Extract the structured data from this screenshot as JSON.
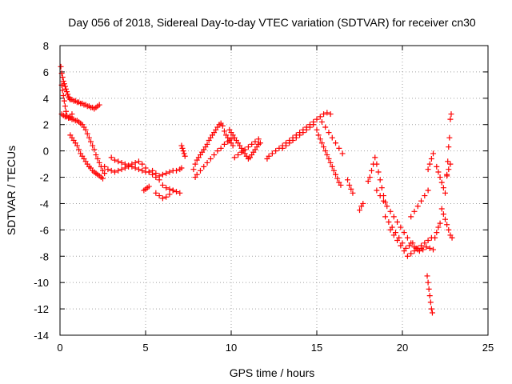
{
  "chart_data": {
    "type": "scatter",
    "title": "Day 056 of 2018, Sidereal Day-to-day VTEC variation (SDTVAR) for receiver cn30",
    "xlabel": "GPS time / hours",
    "ylabel": "SDTVAR / TECUs",
    "xlim": [
      0,
      25
    ],
    "ylim": [
      -14,
      8
    ],
    "xticks": [
      0,
      5,
      10,
      15,
      20,
      25
    ],
    "yticks": [
      -14,
      -12,
      -10,
      -8,
      -6,
      -4,
      -2,
      0,
      2,
      4,
      6,
      8
    ],
    "grid": true,
    "marker": "+",
    "marker_color": "#ff0000",
    "series": [
      {
        "name": "SDTVAR",
        "x": [
          0.05,
          0.1,
          0.15,
          0.2,
          0.25,
          0.3,
          0.35,
          0.4,
          0.45,
          0.5,
          0.55,
          0.6,
          0.7,
          0.8,
          0.9,
          1.0,
          1.1,
          1.2,
          1.3,
          1.4,
          1.5,
          1.6,
          1.7,
          1.8,
          1.9,
          2.0,
          2.1,
          2.2,
          2.3,
          0.1,
          0.2,
          0.3,
          0.4,
          0.5,
          0.6,
          0.7,
          0.8,
          0.9,
          1.0,
          1.1,
          1.2,
          1.3,
          1.4,
          1.5,
          1.6,
          1.7,
          1.8,
          1.9,
          2.0,
          2.1,
          2.2,
          2.3,
          2.4,
          2.5,
          2.6,
          0.6,
          0.7,
          0.8,
          0.9,
          1.0,
          1.1,
          1.2,
          1.3,
          1.4,
          1.5,
          1.6,
          1.7,
          1.8,
          1.9,
          2.0,
          2.1,
          2.2,
          2.3,
          2.4,
          2.5,
          0.1,
          0.15,
          0.2,
          0.25,
          0.3,
          0.35,
          0.4,
          0.5,
          0.6,
          0.7,
          2.6,
          2.8,
          3.0,
          3.2,
          3.4,
          3.6,
          3.8,
          4.0,
          4.2,
          4.4,
          4.6,
          4.8,
          5.0,
          5.2,
          5.4,
          5.6,
          5.8,
          6.0,
          6.2,
          6.4,
          6.6,
          6.8,
          7.0,
          7.1,
          3.0,
          3.2,
          3.4,
          3.6,
          3.8,
          4.0,
          4.2,
          4.4,
          4.6,
          4.8,
          5.0,
          5.2,
          5.4,
          5.6,
          5.8,
          6.0,
          6.2,
          6.4,
          6.6,
          6.8,
          7.0,
          4.9,
          5.0,
          5.1,
          5.2,
          5.6,
          5.8,
          6.0,
          6.2,
          6.4,
          6.6,
          7.1,
          7.15,
          7.2,
          7.25,
          7.3,
          7.8,
          7.9,
          8.0,
          8.1,
          8.2,
          8.3,
          8.4,
          8.5,
          8.6,
          8.7,
          8.8,
          8.9,
          9.0,
          9.1,
          9.2,
          9.3,
          9.4,
          9.5,
          9.6,
          9.7,
          9.8,
          9.9,
          10.0,
          10.1,
          7.9,
          8.0,
          8.2,
          8.4,
          8.6,
          8.8,
          9.0,
          9.2,
          9.4,
          9.6,
          9.8,
          10.0,
          9.9,
          10.0,
          10.1,
          10.2,
          10.3,
          10.4,
          10.5,
          10.6,
          10.7,
          10.8,
          10.9,
          11.0,
          11.1,
          11.2,
          11.3,
          11.4,
          11.5,
          11.6,
          11.7,
          10.2,
          10.4,
          10.6,
          10.8,
          11.0,
          11.2,
          11.4,
          11.6,
          12.1,
          12.2,
          12.4,
          12.6,
          12.8,
          13.0,
          13.2,
          13.4,
          13.6,
          13.8,
          14.0,
          14.2,
          14.4,
          14.6,
          14.8,
          15.0,
          15.2,
          15.4,
          15.6,
          15.8,
          13.0,
          13.2,
          13.4,
          13.6,
          13.8,
          14.0,
          14.2,
          14.4,
          14.6,
          14.8,
          15.0,
          15.1,
          15.2,
          15.3,
          15.4,
          15.5,
          15.6,
          15.7,
          15.8,
          15.9,
          16.0,
          16.1,
          16.2,
          16.3,
          16.4,
          15.3,
          15.5,
          15.7,
          15.9,
          16.1,
          16.3,
          16.5,
          16.8,
          16.9,
          17.0,
          17.1,
          17.5,
          17.6,
          17.7,
          18.0,
          18.1,
          18.2,
          18.3,
          18.4,
          18.5,
          18.6,
          18.7,
          18.8,
          18.9,
          19.0,
          18.5,
          18.7,
          18.9,
          19.1,
          19.3,
          19.5,
          19.7,
          19.9,
          20.1,
          20.3,
          20.5,
          20.7,
          20.9,
          21.1,
          19.0,
          19.2,
          19.4,
          19.6,
          19.8,
          20.0,
          20.2,
          20.4,
          20.6,
          20.8,
          21.0,
          21.2,
          21.4,
          21.6,
          21.8,
          19.3,
          19.5,
          19.7,
          19.9,
          20.1,
          20.3,
          20.5,
          20.7,
          20.9,
          21.1,
          21.3,
          21.5,
          21.7,
          20.5,
          20.7,
          20.9,
          21.1,
          21.3,
          21.5,
          21.45,
          21.5,
          21.55,
          21.6,
          21.65,
          21.7,
          21.75,
          21.5,
          21.6,
          21.7,
          21.8,
          21.9,
          22.0,
          22.1,
          22.2,
          22.0,
          22.1,
          22.2,
          22.3,
          22.4,
          22.5,
          22.6,
          22.7,
          22.8,
          22.3,
          22.4,
          22.5,
          22.6,
          22.7,
          22.8,
          22.9,
          22.6,
          22.65,
          22.7,
          22.75,
          22.8,
          22.85
        ],
        "y": [
          6.4,
          5.9,
          5.6,
          5.3,
          5.1,
          4.9,
          4.7,
          4.5,
          4.3,
          4.1,
          4.0,
          3.9,
          3.9,
          3.8,
          3.8,
          3.7,
          3.7,
          3.6,
          3.6,
          3.5,
          3.5,
          3.4,
          3.4,
          3.3,
          3.3,
          3.2,
          3.3,
          3.4,
          3.5,
          2.8,
          2.7,
          2.6,
          2.6,
          2.5,
          2.5,
          2.4,
          2.4,
          2.3,
          2.3,
          2.2,
          2.1,
          2.0,
          1.8,
          1.6,
          1.3,
          1.0,
          0.7,
          0.4,
          0.1,
          -0.3,
          -0.6,
          -0.9,
          -1.2,
          -1.5,
          -1.7,
          1.2,
          1.0,
          0.8,
          0.6,
          0.4,
          0.1,
          -0.2,
          -0.4,
          -0.6,
          -0.8,
          -1.0,
          -1.2,
          -1.3,
          -1.5,
          -1.6,
          -1.7,
          -1.8,
          -1.9,
          -2.0,
          -2.1,
          5.0,
          4.6,
          4.2,
          3.8,
          3.4,
          3.0,
          2.7,
          2.5,
          2.6,
          2.8,
          -1.2,
          -1.4,
          -1.5,
          -1.6,
          -1.5,
          -1.4,
          -1.3,
          -1.2,
          -1.0,
          -0.9,
          -0.8,
          -1.0,
          -1.3,
          -1.6,
          -1.8,
          -2.0,
          -1.9,
          -1.8,
          -1.7,
          -1.6,
          -1.5,
          -1.5,
          -1.4,
          -1.3,
          -0.5,
          -0.7,
          -0.8,
          -0.9,
          -1.0,
          -1.1,
          -1.2,
          -1.3,
          -1.4,
          -1.5,
          -1.6,
          -1.6,
          -1.5,
          -1.7,
          -2.2,
          -2.6,
          -2.8,
          -2.9,
          -3.0,
          -3.1,
          -3.2,
          -3.0,
          -2.9,
          -2.8,
          -2.7,
          -3.2,
          -3.4,
          -3.6,
          -3.5,
          -3.3,
          -3.0,
          0.4,
          0.2,
          0.0,
          -0.2,
          -0.4,
          -1.4,
          -1.0,
          -0.7,
          -0.5,
          -0.3,
          -0.1,
          0.1,
          0.3,
          0.5,
          0.8,
          1.0,
          1.2,
          1.4,
          1.6,
          1.8,
          2.0,
          2.1,
          1.9,
          1.5,
          1.2,
          1.0,
          0.8,
          0.6,
          0.4,
          -2.0,
          -1.8,
          -1.5,
          -1.2,
          -0.9,
          -0.6,
          -0.3,
          0.0,
          0.2,
          0.5,
          0.7,
          0.9,
          1.6,
          1.4,
          1.2,
          1.0,
          0.8,
          0.6,
          0.4,
          0.2,
          0.0,
          -0.2,
          -0.4,
          -0.6,
          -0.5,
          -0.3,
          -0.1,
          0.1,
          0.3,
          0.5,
          0.6,
          -0.5,
          -0.3,
          -0.1,
          0.1,
          0.3,
          0.5,
          0.7,
          0.9,
          -0.6,
          -0.4,
          -0.2,
          0.0,
          0.2,
          0.4,
          0.6,
          0.8,
          1.0,
          1.2,
          1.4,
          1.6,
          1.8,
          2.0,
          2.2,
          2.4,
          2.6,
          2.8,
          2.9,
          2.8,
          0.2,
          0.4,
          0.6,
          0.8,
          1.0,
          1.2,
          1.4,
          1.6,
          1.8,
          2.0,
          1.6,
          1.2,
          0.9,
          0.6,
          0.3,
          0.0,
          -0.3,
          -0.6,
          -0.9,
          -1.2,
          -1.5,
          -1.8,
          -2.1,
          -2.4,
          -2.6,
          2.2,
          1.8,
          1.4,
          1.0,
          0.6,
          0.2,
          -0.2,
          -2.2,
          -2.6,
          -2.9,
          -3.2,
          -4.5,
          -4.2,
          -4.0,
          -2.3,
          -2.0,
          -1.5,
          -1.0,
          -0.5,
          -1.0,
          -1.6,
          -2.2,
          -2.8,
          -3.4,
          -3.9,
          -3.0,
          -3.4,
          -3.8,
          -4.2,
          -4.6,
          -5.0,
          -5.4,
          -5.8,
          -6.2,
          -6.6,
          -7.0,
          -7.3,
          -7.5,
          -7.4,
          -5.0,
          -5.4,
          -5.8,
          -6.2,
          -6.6,
          -7.0,
          -7.4,
          -7.2,
          -7.0,
          -7.4,
          -7.6,
          -7.5,
          -7.3,
          -7.4,
          -7.5,
          -6.0,
          -6.4,
          -6.8,
          -7.2,
          -7.6,
          -8.0,
          -7.8,
          -7.6,
          -7.4,
          -7.2,
          -7.0,
          -6.8,
          -6.6,
          -5.0,
          -4.6,
          -4.2,
          -3.8,
          -3.4,
          -3.0,
          -9.5,
          -10.0,
          -10.5,
          -11.0,
          -11.5,
          -12.0,
          -12.3,
          -1.4,
          -1.0,
          -0.6,
          -0.2,
          -6.6,
          -6.2,
          -5.8,
          -5.5,
          -1.2,
          -1.6,
          -2.0,
          -2.4,
          -2.8,
          -3.2,
          -1.8,
          -1.4,
          -1.0,
          -4.4,
          -4.8,
          -5.2,
          -5.6,
          -6.0,
          -6.4,
          -6.6,
          -1.9,
          -0.8,
          0.3,
          1.0,
          2.4,
          2.8
        ]
      }
    ]
  }
}
